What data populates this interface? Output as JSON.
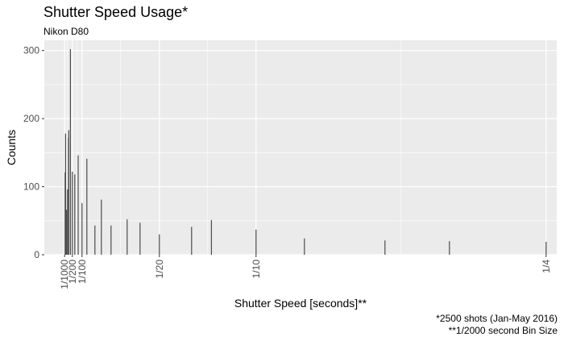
{
  "chart_data": {
    "type": "bar",
    "title": "Shutter Speed Usage*",
    "subtitle": "Nikon D80",
    "xlabel": "Shutter Speed [seconds]**",
    "ylabel": "Counts",
    "ylim": [
      0,
      315
    ],
    "yticks": [
      0,
      100,
      200,
      300
    ],
    "xlim": [
      -0.0095,
      0.2555
    ],
    "x_major_ticks": [
      {
        "value": 0.001,
        "label": "1/1000"
      },
      {
        "value": 0.005,
        "label": "1/200"
      },
      {
        "value": 0.01,
        "label": "1/100"
      },
      {
        "value": 0.05,
        "label": "1/20"
      },
      {
        "value": 0.1,
        "label": "1/10"
      },
      {
        "value": 0.25,
        "label": "1/4"
      }
    ],
    "x_minor_gridlines": [
      0.0025,
      0.0075,
      0.03,
      0.075,
      0.175
    ],
    "grid": true,
    "bar_color": "#4d4d4d",
    "panel_color": "#ebebeb",
    "x": [
      0.00125,
      0.0015,
      0.002,
      0.0025,
      0.003,
      0.003125,
      0.004,
      0.005,
      0.00625,
      0.008,
      0.01,
      0.0125,
      0.016667,
      0.02,
      0.025,
      0.033333,
      0.04,
      0.05,
      0.066667,
      0.076923,
      0.1,
      0.125,
      0.166667,
      0.2,
      0.25
    ],
    "values": [
      121,
      178,
      66,
      96,
      172,
      183,
      302,
      122,
      118,
      146,
      76,
      141,
      43,
      81,
      43,
      52,
      47,
      30,
      41,
      51,
      37,
      24,
      21,
      20,
      19
    ]
  },
  "caption": {
    "line1": "*2500 shots (Jan-May 2016)",
    "line2": "**1/2000 second Bin Size"
  }
}
